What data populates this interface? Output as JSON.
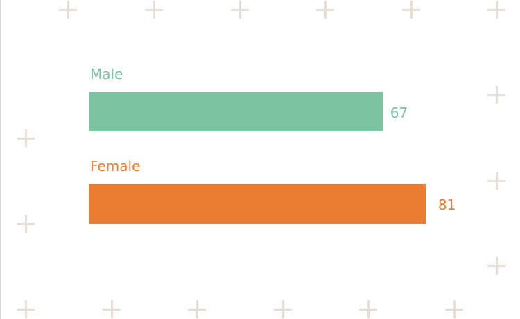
{
  "chart_data": {
    "type": "bar",
    "orientation": "horizontal",
    "categories": [
      "Male",
      "Female"
    ],
    "values": [
      67,
      81
    ],
    "colors": [
      "#7bc3a1",
      "#ec7c31"
    ],
    "title": "",
    "xlabel": "",
    "ylabel": "",
    "grid": false,
    "data_labels": true
  },
  "background": {
    "pattern": "plus-signs",
    "pattern_color": "#e6ddd3"
  }
}
